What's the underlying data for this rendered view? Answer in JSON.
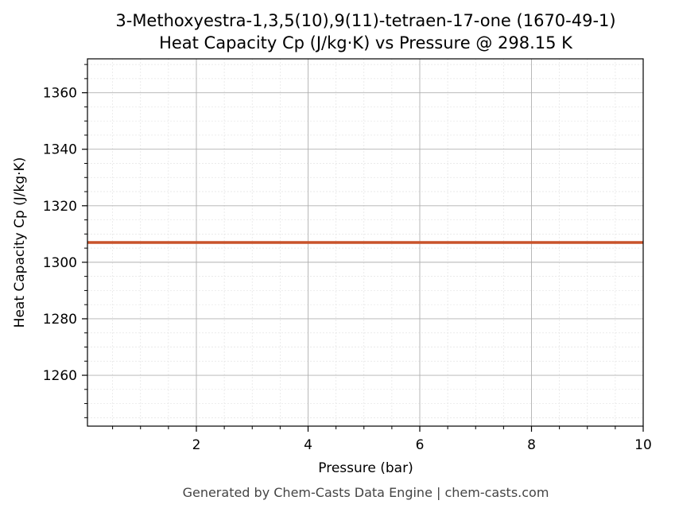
{
  "chart_data": {
    "type": "line",
    "title": "3-Methoxyestra-1,3,5(10),9(11)-tetraen-17-one (1670-49-1)",
    "subtitle": "Heat Capacity Cp (J/kg·K) vs Pressure @ 298.15 K",
    "xlabel": "Pressure (bar)",
    "ylabel": "Heat Capacity Cp (J/kg·K)",
    "xlim": [
      0.05,
      10
    ],
    "ylim": [
      1242,
      1372
    ],
    "xticks": [
      2,
      4,
      6,
      8,
      10
    ],
    "xtick_labels": [
      "2",
      "4",
      "6",
      "8",
      "10"
    ],
    "yticks": [
      1260,
      1280,
      1300,
      1320,
      1340,
      1360
    ],
    "ytick_labels": [
      "1260",
      "1280",
      "1300",
      "1320",
      "1340",
      "1360"
    ],
    "grid": true,
    "series": [
      {
        "color": "#c8522a",
        "x": [
          0.05,
          10
        ],
        "y": [
          1307,
          1307
        ]
      }
    ]
  },
  "footer": "Generated by Chem-Casts Data Engine | chem-casts.com"
}
